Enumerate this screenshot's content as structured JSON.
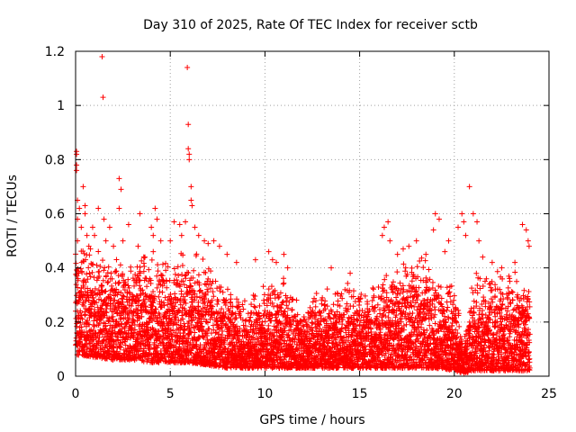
{
  "chart_data": {
    "type": "scatter",
    "title": "Day 310 of 2025, Rate Of TEC Index for receiver sctb",
    "xlabel": "GPS time / hours",
    "ylabel": "ROTI / TECUs",
    "xlim": [
      0,
      25
    ],
    "ylim": [
      0,
      1.2
    ],
    "x_ticks": [
      "0",
      "5",
      "10",
      "15",
      "20",
      "25"
    ],
    "y_ticks": [
      "0",
      "0.2",
      "0.4",
      "0.6",
      "0.8",
      "1",
      "1.2"
    ],
    "grid": true,
    "marker": "plus",
    "color": "#ff0000",
    "series": [
      {
        "points": [
          [
            0.05,
            0.83
          ],
          [
            0.05,
            0.82
          ],
          [
            0.05,
            0.78
          ],
          [
            0.05,
            0.76
          ],
          [
            0.1,
            0.65
          ],
          [
            0.1,
            0.58
          ],
          [
            0.1,
            0.5
          ],
          [
            0.2,
            0.62
          ],
          [
            0.3,
            0.55
          ],
          [
            0.4,
            0.7
          ],
          [
            0.5,
            0.63
          ],
          [
            0.5,
            0.6
          ],
          [
            0.6,
            0.52
          ],
          [
            0.7,
            0.48
          ],
          [
            0.9,
            0.55
          ],
          [
            1.0,
            0.52
          ],
          [
            1.2,
            0.62
          ],
          [
            1.4,
            1.18
          ],
          [
            1.45,
            1.03
          ],
          [
            1.5,
            0.58
          ],
          [
            1.6,
            0.5
          ],
          [
            1.8,
            0.55
          ],
          [
            2.0,
            0.48
          ],
          [
            2.3,
            0.73
          ],
          [
            2.4,
            0.69
          ],
          [
            2.3,
            0.62
          ],
          [
            2.5,
            0.5
          ],
          [
            2.8,
            0.56
          ],
          [
            3.4,
            0.6
          ],
          [
            3.3,
            0.48
          ],
          [
            3.6,
            0.44
          ],
          [
            4.0,
            0.55
          ],
          [
            4.1,
            0.52
          ],
          [
            4.2,
            0.62
          ],
          [
            4.3,
            0.58
          ],
          [
            4.1,
            0.46
          ],
          [
            4.5,
            0.5
          ],
          [
            5.0,
            0.5
          ],
          [
            5.2,
            0.57
          ],
          [
            5.5,
            0.56
          ],
          [
            5.6,
            0.52
          ],
          [
            5.8,
            0.57
          ],
          [
            5.9,
            1.14
          ],
          [
            5.95,
            0.93
          ],
          [
            5.95,
            0.84
          ],
          [
            6.0,
            0.82
          ],
          [
            6.0,
            0.8
          ],
          [
            6.1,
            0.7
          ],
          [
            6.1,
            0.65
          ],
          [
            6.15,
            0.63
          ],
          [
            6.3,
            0.55
          ],
          [
            6.5,
            0.52
          ],
          [
            6.8,
            0.5
          ],
          [
            7.0,
            0.49
          ],
          [
            7.3,
            0.5
          ],
          [
            7.6,
            0.48
          ],
          [
            8.0,
            0.45
          ],
          [
            8.5,
            0.42
          ],
          [
            9.5,
            0.43
          ],
          [
            10.2,
            0.46
          ],
          [
            10.4,
            0.43
          ],
          [
            10.6,
            0.42
          ],
          [
            11.0,
            0.45
          ],
          [
            11.2,
            0.4
          ],
          [
            13.5,
            0.4
          ],
          [
            14.5,
            0.38
          ],
          [
            16.2,
            0.52
          ],
          [
            16.3,
            0.55
          ],
          [
            16.5,
            0.57
          ],
          [
            16.6,
            0.5
          ],
          [
            17.0,
            0.45
          ],
          [
            17.3,
            0.47
          ],
          [
            17.6,
            0.48
          ],
          [
            18.0,
            0.5
          ],
          [
            18.5,
            0.45
          ],
          [
            18.9,
            0.54
          ],
          [
            19.0,
            0.6
          ],
          [
            19.2,
            0.58
          ],
          [
            19.5,
            0.46
          ],
          [
            19.7,
            0.5
          ],
          [
            20.2,
            0.55
          ],
          [
            20.4,
            0.6
          ],
          [
            20.5,
            0.57
          ],
          [
            20.6,
            0.52
          ],
          [
            20.8,
            0.7
          ],
          [
            21.0,
            0.6
          ],
          [
            21.2,
            0.57
          ],
          [
            21.3,
            0.5
          ],
          [
            21.5,
            0.44
          ],
          [
            22.0,
            0.42
          ],
          [
            22.5,
            0.4
          ],
          [
            23.2,
            0.42
          ],
          [
            23.6,
            0.56
          ],
          [
            23.8,
            0.54
          ],
          [
            23.9,
            0.5
          ],
          [
            23.95,
            0.48
          ]
        ]
      }
    ],
    "band_envelope": {
      "description_hours": [
        0,
        1,
        2,
        3,
        4,
        5,
        6,
        7,
        8,
        9,
        10,
        11,
        12,
        13,
        14,
        15,
        16,
        17,
        18,
        19,
        20,
        20.5,
        21,
        22,
        23,
        24
      ],
      "upper": [
        0.45,
        0.42,
        0.4,
        0.38,
        0.42,
        0.38,
        0.42,
        0.38,
        0.3,
        0.25,
        0.3,
        0.32,
        0.22,
        0.3,
        0.3,
        0.28,
        0.3,
        0.38,
        0.4,
        0.35,
        0.3,
        0.1,
        0.35,
        0.35,
        0.35,
        0.3
      ],
      "lower": [
        0.08,
        0.07,
        0.06,
        0.06,
        0.05,
        0.05,
        0.05,
        0.04,
        0.03,
        0.03,
        0.03,
        0.03,
        0.03,
        0.03,
        0.03,
        0.03,
        0.03,
        0.03,
        0.03,
        0.03,
        0.02,
        0.01,
        0.02,
        0.02,
        0.02,
        0.02
      ]
    }
  }
}
